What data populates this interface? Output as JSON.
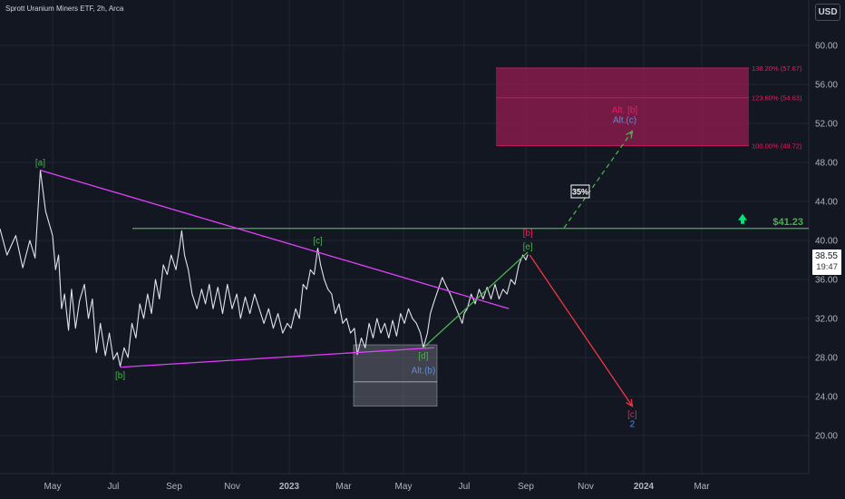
{
  "header": {
    "title": "Sprott Uranium Miners ETF, 2h, Arca",
    "currency_button": "USD"
  },
  "price_badge": {
    "price": "38.55",
    "countdown": "19:47"
  },
  "chart_data": {
    "type": "line",
    "title": "Sprott Uranium Miners ETF, 2h, Arca",
    "yaxis_ticks": [
      "60.00",
      "56.00",
      "52.00",
      "48.00",
      "44.00",
      "40.00",
      "36.00",
      "32.00",
      "28.00",
      "24.00",
      "20.00"
    ],
    "xaxis_ticks": [
      "May",
      "Jul",
      "Sep",
      "Nov",
      "2023",
      "Mar",
      "May",
      "Jul",
      "Sep",
      "Nov",
      "2024",
      "Mar"
    ],
    "ylim": [
      17.5,
      63
    ],
    "grid": true,
    "legend": "none",
    "price_path": [
      [
        "2022-04-01",
        41.2
      ],
      [
        "2022-04-05",
        38.5
      ],
      [
        "2022-04-10",
        40.5
      ],
      [
        "2022-04-14",
        37.2
      ],
      [
        "2022-04-18",
        40.0
      ],
      [
        "2022-04-21",
        38.2
      ],
      [
        "2022-04-24",
        47.2
      ],
      [
        "2022-04-27",
        43.0
      ],
      [
        "2022-05-01",
        40.5
      ],
      [
        "2022-05-04",
        37.0
      ],
      [
        "2022-05-07",
        38.5
      ],
      [
        "2022-05-10",
        33.0
      ],
      [
        "2022-05-13",
        34.5
      ],
      [
        "2022-05-17",
        30.8
      ],
      [
        "2022-05-20",
        35.0
      ],
      [
        "2022-05-24",
        31.0
      ],
      [
        "2022-05-28",
        33.8
      ],
      [
        "2022-06-02",
        35.5
      ],
      [
        "2022-06-06",
        32.0
      ],
      [
        "2022-06-10",
        34.0
      ],
      [
        "2022-06-14",
        28.5
      ],
      [
        "2022-06-18",
        31.5
      ],
      [
        "2022-06-23",
        28.2
      ],
      [
        "2022-06-27",
        30.5
      ],
      [
        "2022-07-01",
        27.8
      ],
      [
        "2022-07-05",
        28.5
      ],
      [
        "2022-07-08",
        27.1
      ],
      [
        "2022-07-12",
        29.0
      ],
      [
        "2022-07-16",
        28.0
      ],
      [
        "2022-07-20",
        31.5
      ],
      [
        "2022-07-24",
        30.0
      ],
      [
        "2022-07-28",
        33.5
      ],
      [
        "2022-08-01",
        32.0
      ],
      [
        "2022-08-05",
        34.5
      ],
      [
        "2022-08-09",
        32.5
      ],
      [
        "2022-08-13",
        36.0
      ],
      [
        "2022-08-17",
        34.0
      ],
      [
        "2022-08-21",
        37.5
      ],
      [
        "2022-08-25",
        36.5
      ],
      [
        "2022-08-29",
        38.5
      ],
      [
        "2022-09-03",
        37.0
      ],
      [
        "2022-09-07",
        39.5
      ],
      [
        "2022-09-09",
        41.0
      ],
      [
        "2022-09-12",
        38.5
      ],
      [
        "2022-09-16",
        37.0
      ],
      [
        "2022-09-20",
        34.5
      ],
      [
        "2022-09-25",
        33.0
      ],
      [
        "2022-09-30",
        35.0
      ],
      [
        "2022-10-04",
        33.5
      ],
      [
        "2022-10-08",
        35.5
      ],
      [
        "2022-10-12",
        33.0
      ],
      [
        "2022-10-17",
        35.2
      ],
      [
        "2022-10-22",
        32.5
      ],
      [
        "2022-10-27",
        35.5
      ],
      [
        "2022-11-01",
        33.0
      ],
      [
        "2022-11-06",
        34.5
      ],
      [
        "2022-11-10",
        32.0
      ],
      [
        "2022-11-15",
        34.2
      ],
      [
        "2022-11-20",
        32.5
      ],
      [
        "2022-11-25",
        34.5
      ],
      [
        "2022-11-30",
        33.0
      ],
      [
        "2022-12-05",
        31.5
      ],
      [
        "2022-12-10",
        33.0
      ],
      [
        "2022-12-15",
        31.0
      ],
      [
        "2022-12-20",
        32.5
      ],
      [
        "2022-12-25",
        30.5
      ],
      [
        "2022-12-30",
        31.5
      ],
      [
        "2023-01-03",
        31.0
      ],
      [
        "2023-01-08",
        33.0
      ],
      [
        "2023-01-12",
        32.0
      ],
      [
        "2023-01-16",
        35.5
      ],
      [
        "2023-01-20",
        35.0
      ],
      [
        "2023-01-24",
        37.0
      ],
      [
        "2023-01-28",
        36.5
      ],
      [
        "2023-02-01",
        39.2
      ],
      [
        "2023-02-04",
        37.5
      ],
      [
        "2023-02-08",
        36.0
      ],
      [
        "2023-02-12",
        35.0
      ],
      [
        "2023-02-16",
        34.5
      ],
      [
        "2023-02-20",
        32.5
      ],
      [
        "2023-02-24",
        33.5
      ],
      [
        "2023-02-28",
        31.5
      ],
      [
        "2023-03-04",
        32.0
      ],
      [
        "2023-03-08",
        30.5
      ],
      [
        "2023-03-12",
        31.0
      ],
      [
        "2023-03-15",
        28.3
      ],
      [
        "2023-03-19",
        30.0
      ],
      [
        "2023-03-23",
        29.0
      ],
      [
        "2023-03-27",
        31.5
      ],
      [
        "2023-03-31",
        30.0
      ],
      [
        "2023-04-04",
        32.0
      ],
      [
        "2023-04-08",
        30.5
      ],
      [
        "2023-04-12",
        31.5
      ],
      [
        "2023-04-16",
        30.0
      ],
      [
        "2023-04-20",
        31.8
      ],
      [
        "2023-04-24",
        30.2
      ],
      [
        "2023-04-28",
        32.5
      ],
      [
        "2023-05-02",
        31.5
      ],
      [
        "2023-05-06",
        33.0
      ],
      [
        "2023-05-10",
        32.0
      ],
      [
        "2023-05-14",
        31.5
      ],
      [
        "2023-05-18",
        30.5
      ],
      [
        "2023-05-21",
        29.0
      ],
      [
        "2023-05-25",
        30.5
      ],
      [
        "2023-05-28",
        32.5
      ],
      [
        "2023-06-01",
        33.8
      ],
      [
        "2023-06-05",
        35.0
      ],
      [
        "2023-06-09",
        36.2
      ],
      [
        "2023-06-13",
        35.3
      ],
      [
        "2023-06-17",
        34.5
      ],
      [
        "2023-06-21",
        33.5
      ],
      [
        "2023-06-25",
        32.5
      ],
      [
        "2023-06-29",
        31.5
      ],
      [
        "2023-07-01",
        32.5
      ],
      [
        "2023-07-04",
        33.0
      ],
      [
        "2023-07-08",
        34.5
      ],
      [
        "2023-07-12",
        33.5
      ],
      [
        "2023-07-16",
        35.0
      ],
      [
        "2023-07-20",
        34.0
      ],
      [
        "2023-07-24",
        35.2
      ],
      [
        "2023-07-28",
        34.0
      ],
      [
        "2023-08-01",
        35.5
      ],
      [
        "2023-08-05",
        34.0
      ],
      [
        "2023-08-09",
        35.0
      ],
      [
        "2023-08-13",
        34.5
      ],
      [
        "2023-08-17",
        36.0
      ],
      [
        "2023-08-21",
        35.5
      ],
      [
        "2023-08-25",
        37.5
      ],
      [
        "2023-08-29",
        38.5
      ],
      [
        "2023-09-01",
        38.0
      ],
      [
        "2023-09-03",
        38.55
      ]
    ],
    "horizontal_levels": [
      {
        "value": 41.23,
        "label": "$41.23",
        "color": "#4caf50"
      }
    ],
    "fibonacci_zone": {
      "color": "#8e1c4f",
      "levels": [
        {
          "label": "138.20% (57.67)",
          "value": 57.67
        },
        {
          "label": "123.60% (54.63)",
          "value": 54.63
        },
        {
          "label": "100.00% (49.72)",
          "value": 49.72
        }
      ]
    },
    "gray_box": {
      "y_top": 29.3,
      "y_mid": 25.5,
      "y_bottom": 23.0
    },
    "trendlines": [
      {
        "from": [
          "2022-04-24",
          47.2
        ],
        "to": [
          "2023-08-15",
          33.0
        ],
        "color": "#e040fb"
      },
      {
        "from": [
          "2022-07-08",
          27.0
        ],
        "to": [
          "2023-06-01",
          29.0
        ],
        "color": "#e040fb"
      },
      {
        "from": [
          "2023-05-21",
          29.0
        ],
        "to": [
          "2023-09-03",
          38.8
        ],
        "color": "#4caf50"
      }
    ],
    "projections": [
      {
        "from": [
          "2023-10-10",
          41.3
        ],
        "to": [
          "2023-12-20",
          51.2
        ],
        "color": "#4caf50",
        "style": "dashed"
      },
      {
        "from": [
          "2023-09-05",
          38.5
        ],
        "to": [
          "2023-12-20",
          23.0
        ],
        "color": "#f23645",
        "style": "solid"
      }
    ],
    "wave_labels": [
      {
        "text": "[a]",
        "at": [
          "2022-04-24",
          47.2
        ],
        "color": "#4caf50",
        "pos": "above"
      },
      {
        "text": "[b]",
        "at": [
          "2022-07-08",
          27.0
        ],
        "color": "#4caf50",
        "pos": "below"
      },
      {
        "text": "[c]",
        "at": [
          "2023-02-01",
          39.2
        ],
        "color": "#4caf50",
        "pos": "above"
      },
      {
        "text": "[d]",
        "at": [
          "2023-05-21",
          29.0
        ],
        "color": "#4caf50",
        "pos": "below"
      },
      {
        "text": "Alt.(b)",
        "at": [
          "2023-05-21",
          27.5
        ],
        "color": "#5c8dd6",
        "pos": "below"
      },
      {
        "text": "[b]",
        "at": [
          "2023-09-03",
          40.0
        ],
        "color": "#e91e63",
        "pos": "above"
      },
      {
        "text": "[e]",
        "at": [
          "2023-09-03",
          38.6
        ],
        "color": "#4caf50",
        "pos": "above"
      },
      {
        "text": "Alt. [b]",
        "at": [
          "2023-12-12",
          52.6
        ],
        "color": "#e91e63",
        "pos": "above"
      },
      {
        "text": "Alt.(c)",
        "at": [
          "2023-12-12",
          51.6
        ],
        "color": "#5c8dd6",
        "pos": "above"
      },
      {
        "text": "[c]",
        "at": [
          "2023-12-20",
          23.0
        ],
        "color": "#e91e63",
        "pos": "below"
      },
      {
        "text": "2",
        "at": [
          "2023-12-20",
          22.0
        ],
        "color": "#5c8dd6",
        "pos": "below"
      }
    ],
    "badge_35": "35%",
    "arrow_icon": "up-arrow-icon"
  }
}
